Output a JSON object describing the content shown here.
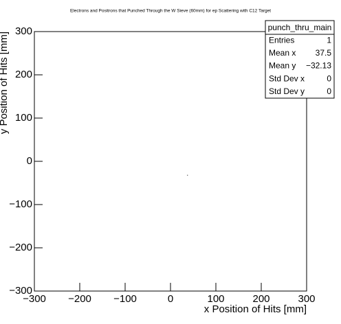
{
  "chart_data": {
    "type": "scatter",
    "title": "Electrons and Positrons that Punched Through the W Sieve (60mm) for ep Scattering with C12 Target",
    "xlabel": "x Position of Hits [mm]",
    "ylabel": "y Position of Hits [mm]",
    "x": [
      37.5
    ],
    "values": [
      -32.13
    ],
    "color": "#000000",
    "xlim": [
      -300,
      300
    ],
    "ylim": [
      -300,
      300
    ],
    "xticks": [
      {
        "value": -300,
        "label": "−300"
      },
      {
        "value": -200,
        "label": "−200"
      },
      {
        "value": -100,
        "label": "−100"
      },
      0,
      100,
      200,
      300
    ],
    "yticks": [
      {
        "value": -300,
        "label": "−300"
      },
      {
        "value": -200,
        "label": "−200"
      },
      {
        "value": -100,
        "label": "−100"
      },
      0,
      100,
      200,
      300
    ],
    "grid": false,
    "stats": {
      "name": "punch_thru_main",
      "rows": [
        {
          "label": "Entries",
          "value": "1"
        },
        {
          "label": "Mean x",
          "value": "37.5"
        },
        {
          "label": "Mean y",
          "value": "−32.13"
        },
        {
          "label": "Std Dev x",
          "value": "0"
        },
        {
          "label": "Std Dev y",
          "value": "0"
        }
      ]
    }
  }
}
